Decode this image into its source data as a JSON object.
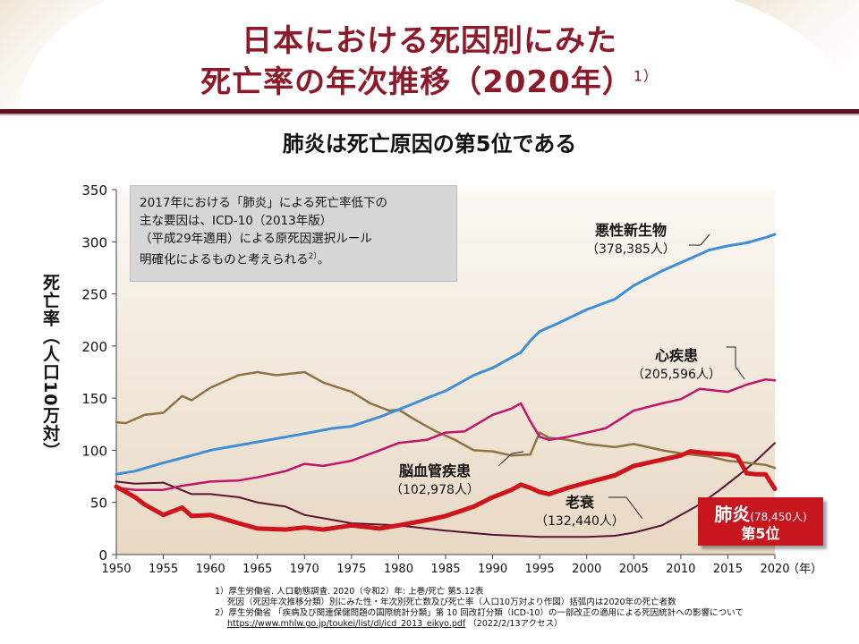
{
  "title": {
    "line1": "日本における死因別にみた",
    "line2": "死亡率の年次推移（2020年）",
    "line2_sup": "1）"
  },
  "subtitle": "肺炎は死亡原因の第5位である",
  "note": {
    "lines": [
      "2017年における「肺炎」による死亡率低下の",
      "主な要因は、ICD-10（2013年版）",
      "（平成29年適用）による原死因選択ルール",
      "明確化によるものと考えられる"
    ],
    "sup": "2）",
    "end": "。"
  },
  "annotations": {
    "cancer": {
      "name": "悪性新生物",
      "count": "（378,385人）"
    },
    "heart": {
      "name": "心疾患",
      "count": "（205,596人）"
    },
    "stroke": {
      "name": "脳血管疾患",
      "count": "（102,978人）"
    },
    "senility": {
      "name": "老衰",
      "count": "（132,440人）"
    },
    "pneumonia": {
      "name": "肺炎",
      "count": "(78,450人)",
      "rank": "第5位"
    }
  },
  "references": {
    "r1a": "1）厚生労働省. 人口動態調査. 2020（令和2）年: 上巻/死亡 第5.12表",
    "r1b": "死因（死因年次推移分類）別にみた性・年次別死亡数及び死亡率（人口10万対より作図）括弧内は2020年の死亡者数",
    "r2a": "2）厚生労働省 「疾病及び関連保健問題の国際統計分類」第 10 回改訂分類（ICD-10）の一部改正の適用による死因統計への影響について",
    "r2b": "https://www.mhlw.go.jp/toukei/list/dl/icd_2013_eikyo.pdf",
    "r2c": "（2022/2/13アクセス）"
  },
  "colors": {
    "title": "#8c1a2a",
    "cancer": "#3e8fd6",
    "heart": "#c3146e",
    "stroke": "#8f7443",
    "pneumonia": "#d0141c",
    "senility": "#5a1430",
    "area_top": "#fbf8f4",
    "area_bottom": "#e8d8c3"
  },
  "chart_data": {
    "type": "line",
    "xlabel": "（年）",
    "ylabel": "死亡率（人口10万対）",
    "ylim": [
      0,
      350
    ],
    "yticks": [
      0,
      50,
      100,
      150,
      200,
      250,
      300,
      350
    ],
    "xlim": [
      1950,
      2020
    ],
    "xticks": [
      1950,
      1955,
      1960,
      1965,
      1970,
      1975,
      1980,
      1985,
      1990,
      1995,
      2000,
      2005,
      2010,
      2015,
      2020
    ],
    "grid": false,
    "series": [
      {
        "name": "悪性新生物",
        "key": "cancer",
        "x": [
          1950,
          1952,
          1955,
          1958,
          1960,
          1965,
          1970,
          1973,
          1975,
          1978,
          1980,
          1983,
          1985,
          1988,
          1990,
          1993,
          1994,
          1995,
          1997,
          2000,
          2003,
          2005,
          2008,
          2010,
          2013,
          2015,
          2017,
          2019,
          2020
        ],
        "y": [
          77,
          80,
          88,
          95,
          100,
          108,
          116,
          121,
          123,
          132,
          139,
          150,
          157,
          172,
          179,
          194,
          205,
          214,
          222,
          235,
          245,
          258,
          272,
          280,
          292,
          296,
          299,
          304,
          307
        ]
      },
      {
        "name": "心疾患",
        "key": "heart",
        "x": [
          1950,
          1952,
          1955,
          1957,
          1960,
          1963,
          1965,
          1968,
          1970,
          1972,
          1975,
          1978,
          1980,
          1983,
          1985,
          1987,
          1990,
          1992,
          1993,
          1994,
          1995,
          1996,
          1998,
          2000,
          2002,
          2005,
          2008,
          2010,
          2012,
          2014,
          2015,
          2017,
          2019,
          2020
        ],
        "y": [
          64,
          62,
          62,
          66,
          70,
          71,
          74,
          80,
          87,
          85,
          90,
          100,
          107,
          110,
          117,
          118,
          134,
          140,
          145,
          128,
          113,
          110,
          113,
          117,
          121,
          138,
          145,
          149,
          159,
          157,
          156,
          163,
          168,
          167
        ]
      },
      {
        "name": "脳血管疾患",
        "key": "stroke",
        "x": [
          1950,
          1951,
          1953,
          1955,
          1957,
          1958,
          1960,
          1963,
          1965,
          1967,
          1970,
          1972,
          1975,
          1977,
          1979,
          1980,
          1982,
          1984,
          1986,
          1988,
          1990,
          1992,
          1994,
          1995,
          1996,
          1998,
          2000,
          2003,
          2005,
          2008,
          2010,
          2013,
          2015,
          2017,
          2019,
          2020
        ],
        "y": [
          127,
          126,
          134,
          136,
          152,
          148,
          160,
          172,
          175,
          172,
          175,
          165,
          156,
          145,
          138,
          139,
          128,
          118,
          110,
          100,
          99,
          95,
          96,
          117,
          112,
          110,
          106,
          103,
          106,
          100,
          97,
          94,
          90,
          88,
          86,
          83
        ]
      },
      {
        "name": "肺炎",
        "key": "pneumonia",
        "x": [
          1950,
          1952,
          1953,
          1955,
          1957,
          1958,
          1960,
          1963,
          1965,
          1968,
          1970,
          1972,
          1975,
          1978,
          1980,
          1983,
          1985,
          1988,
          1990,
          1992,
          1993,
          1994,
          1995,
          1996,
          1998,
          2000,
          2003,
          2005,
          2008,
          2010,
          2011,
          2013,
          2015,
          2016,
          2017,
          2018,
          2019,
          2020
        ],
        "y": [
          65,
          55,
          48,
          38,
          45,
          37,
          38,
          30,
          25,
          24,
          26,
          24,
          28,
          25,
          28,
          33,
          37,
          46,
          55,
          62,
          67,
          64,
          60,
          58,
          64,
          69,
          76,
          85,
          91,
          95,
          99,
          97,
          96,
          94,
          78,
          77,
          77,
          63
        ]
      },
      {
        "name": "老衰",
        "key": "senility",
        "x": [
          1950,
          1952,
          1955,
          1958,
          1960,
          1963,
          1965,
          1968,
          1970,
          1975,
          1980,
          1985,
          1990,
          1995,
          2000,
          2003,
          2005,
          2008,
          2010,
          2012,
          2014,
          2016,
          2018,
          2020
        ],
        "y": [
          70,
          68,
          69,
          58,
          58,
          55,
          50,
          46,
          38,
          30,
          28,
          23,
          19,
          17,
          17,
          18,
          21,
          28,
          38,
          48,
          61,
          75,
          90,
          107
        ]
      }
    ]
  }
}
